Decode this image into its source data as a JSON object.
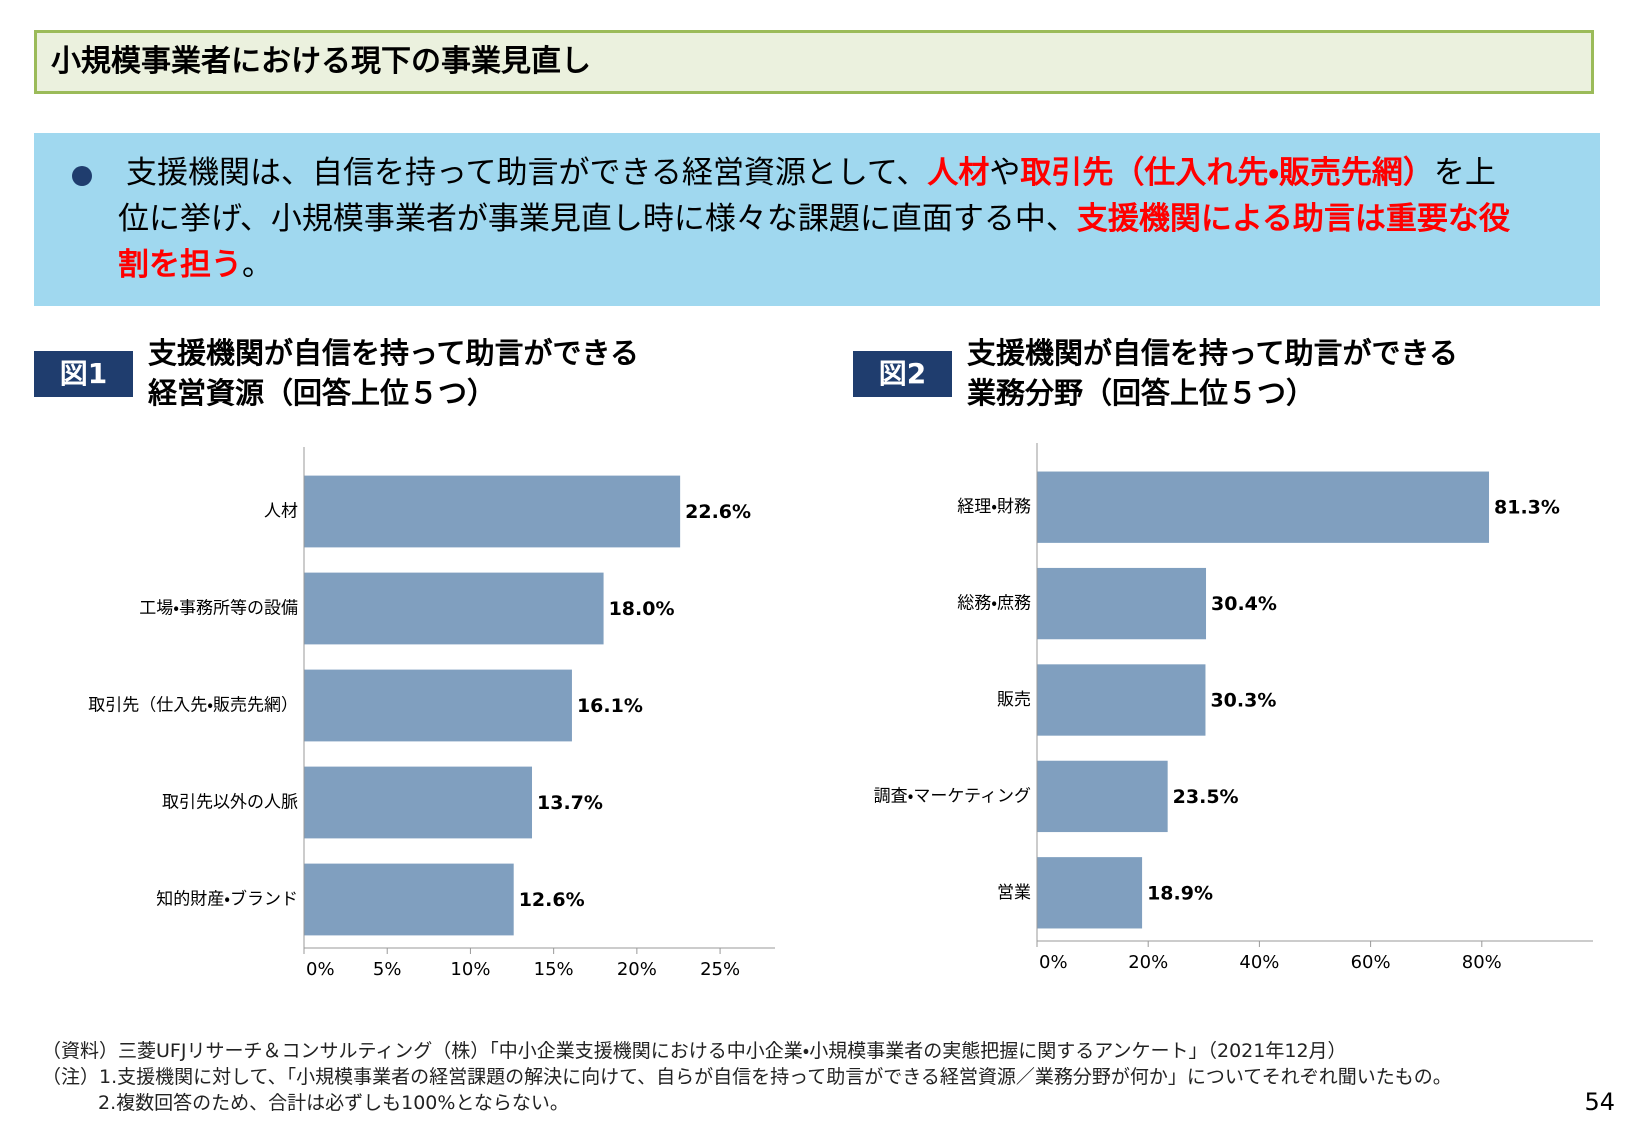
{
  "header": {
    "title": "小規模事業者における現下の事業見直し"
  },
  "bullet": {
    "segments": [
      {
        "text": "支援機関は、自信を持って助言ができる経営資源として、",
        "color": "#000000",
        "bold": false
      },
      {
        "text": "人材",
        "color": "#ff0000",
        "bold": true
      },
      {
        "text": "や",
        "color": "#000000",
        "bold": false
      },
      {
        "text": "取引先（仕入れ先・販売先網）",
        "color": "#ff0000",
        "bold": true
      },
      {
        "text": "を上位に挙げ、小規模事業者が事業見直し時に様々な課題に直面する中、",
        "color": "#000000",
        "bold": false
      },
      {
        "text": "支援機関による助言は重要な役割を担う",
        "color": "#ff0000",
        "bold": true
      },
      {
        "text": "。",
        "color": "#000000",
        "bold": false
      }
    ]
  },
  "chart_data": [
    {
      "type": "bar",
      "orientation": "horizontal",
      "label": "図1",
      "title": "支援機関が自信を持って助言ができる\n経営資源（回答上位５つ）",
      "categories": [
        "人材",
        "工場・事務所等の設備",
        "取引先（仕入先・販売先網）",
        "取引先以外の人脈",
        "知的財産・ブランド"
      ],
      "values": [
        22.6,
        18.0,
        16.1,
        13.7,
        12.6
      ],
      "value_labels": [
        "22.6%",
        "18.0%",
        "16.1%",
        "13.7%",
        "12.6%"
      ],
      "color": "#809fbf",
      "xlim": [
        0,
        28.3
      ],
      "xticks": [
        {
          "value": 0,
          "label": "0%"
        },
        {
          "value": 5,
          "label": "5%"
        },
        {
          "value": 10,
          "label": "10%"
        },
        {
          "value": 15,
          "label": "15%"
        },
        {
          "value": 20,
          "label": "20%"
        },
        {
          "value": 25,
          "label": "25%"
        }
      ]
    },
    {
      "type": "bar",
      "orientation": "horizontal",
      "label": "図2",
      "title": "支援機関が自信を持って助言ができる\n業務分野（回答上位５つ）",
      "categories": [
        "経理・財務",
        "総務・庶務",
        "販売",
        "調査・マーケティング",
        "営業"
      ],
      "values": [
        81.3,
        30.4,
        30.3,
        23.5,
        18.9
      ],
      "value_labels": [
        "81.3%",
        "30.4%",
        "30.3%",
        "23.5%",
        "18.9%"
      ],
      "color": "#809fbf",
      "xlim": [
        0,
        100
      ],
      "xticks": [
        {
          "value": 0,
          "label": "0%"
        },
        {
          "value": 20,
          "label": "20%"
        },
        {
          "value": 40,
          "label": "40%"
        },
        {
          "value": 60,
          "label": "60%"
        },
        {
          "value": 80,
          "label": "80%"
        }
      ]
    }
  ],
  "footnotes": [
    "（資料）三菱UFJリサーチ＆コンサルティング（株）「中小企業支援機関における中小企業・小規模事業者の実態把握に関するアンケート」（2021年12月）",
    "（注）1.支援機関に対して、「小規模事業者の経営課題の解決に向けて、自らが自信を持って助言ができる経営資源／業務分野が何か」についてそれぞれ聞いたもの。",
    "2.複数回答のため、合計は必ずしも100%とならない。"
  ],
  "page_number": "54"
}
